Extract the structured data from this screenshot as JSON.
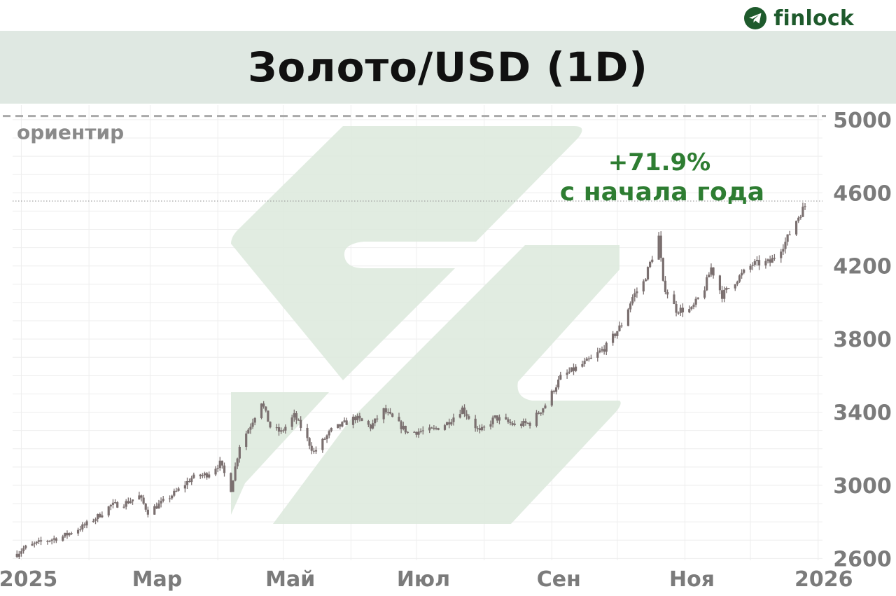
{
  "brand": {
    "name": "finlock",
    "icon": "telegram-icon",
    "color": "#1e5a2c"
  },
  "chart_data": {
    "type": "candlestick",
    "title": "Золото/USD (1D)",
    "x_axis": {
      "ticks": [
        "2025",
        "Мар",
        "Май",
        "Июл",
        "Сен",
        "Ноя",
        "2026"
      ],
      "tick_dates": [
        "2025-01-01",
        "2025-03-01",
        "2025-05-01",
        "2025-07-01",
        "2025-09-01",
        "2025-11-01",
        "2026-01-01"
      ],
      "range": [
        "2024-12-28",
        "2026-01-03"
      ]
    },
    "y_axis": {
      "ticks": [
        2600,
        3000,
        3400,
        3800,
        4200,
        4600,
        5000
      ],
      "range": [
        2590,
        5080
      ],
      "position": "right"
    },
    "reference_line": {
      "value": 5020,
      "label": "ориентир",
      "style": "dashed"
    },
    "current_price_line": {
      "value": 4555,
      "style": "dotted"
    },
    "annotation": {
      "lines": [
        "+71.9%",
        "с начала года"
      ]
    },
    "grid": true,
    "candle_color": "#7a6f6f",
    "watermark": "logo-watermark",
    "price_path": [
      [
        "2024-12-30",
        2625
      ],
      [
        "2025-01-02",
        2655
      ],
      [
        "2025-01-10",
        2690
      ],
      [
        "2025-01-20",
        2720
      ],
      [
        "2025-01-30",
        2780
      ],
      [
        "2025-02-05",
        2830
      ],
      [
        "2025-02-11",
        2890
      ],
      [
        "2025-02-17",
        2900
      ],
      [
        "2025-02-24",
        2940
      ],
      [
        "2025-02-28",
        2855
      ],
      [
        "2025-03-07",
        2910
      ],
      [
        "2025-03-14",
        2975
      ],
      [
        "2025-03-20",
        3040
      ],
      [
        "2025-03-27",
        3060
      ],
      [
        "2025-04-02",
        3120
      ],
      [
        "2025-04-07",
        2980
      ],
      [
        "2025-04-11",
        3220
      ],
      [
        "2025-04-16",
        3330
      ],
      [
        "2025-04-21",
        3460
      ],
      [
        "2025-04-25",
        3320
      ],
      [
        "2025-04-30",
        3290
      ],
      [
        "2025-05-06",
        3380
      ],
      [
        "2025-05-09",
        3320
      ],
      [
        "2025-05-15",
        3180
      ],
      [
        "2025-05-23",
        3300
      ],
      [
        "2025-06-03",
        3370
      ],
      [
        "2025-06-10",
        3320
      ],
      [
        "2025-06-16",
        3410
      ],
      [
        "2025-06-27",
        3290
      ],
      [
        "2025-07-08",
        3300
      ],
      [
        "2025-07-15",
        3340
      ],
      [
        "2025-07-22",
        3420
      ],
      [
        "2025-07-30",
        3290
      ],
      [
        "2025-08-06",
        3370
      ],
      [
        "2025-08-15",
        3330
      ],
      [
        "2025-08-22",
        3340
      ],
      [
        "2025-08-29",
        3440
      ],
      [
        "2025-09-05",
        3590
      ],
      [
        "2025-09-12",
        3640
      ],
      [
        "2025-09-19",
        3690
      ],
      [
        "2025-09-26",
        3760
      ],
      [
        "2025-10-03",
        3880
      ],
      [
        "2025-10-08",
        4030
      ],
      [
        "2025-10-13",
        4110
      ],
      [
        "2025-10-17",
        4250
      ],
      [
        "2025-10-20",
        4360
      ],
      [
        "2025-10-22",
        4100
      ],
      [
        "2025-10-28",
        3960
      ],
      [
        "2025-11-04",
        3960
      ],
      [
        "2025-11-10",
        4080
      ],
      [
        "2025-11-13",
        4190
      ],
      [
        "2025-11-18",
        4040
      ],
      [
        "2025-11-25",
        4130
      ],
      [
        "2025-12-02",
        4210
      ],
      [
        "2025-12-10",
        4220
      ],
      [
        "2025-12-17",
        4330
      ],
      [
        "2025-12-22",
        4450
      ],
      [
        "2025-12-26",
        4530
      ]
    ]
  }
}
